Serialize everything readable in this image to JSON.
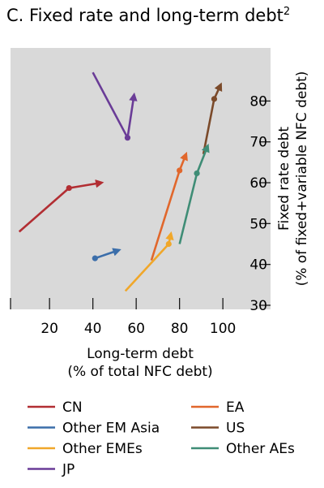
{
  "chart_data": {
    "type": "line",
    "title": "C. Fixed rate and long-term debt",
    "title_superscript": "2",
    "xlabel": "Long-term debt",
    "xlabel_unit": "(% of total NFC debt)",
    "ylabel": "Fixed rate debt",
    "ylabel_unit": "(% of fixed+variable NFC debt)",
    "xlim": [
      2,
      122
    ],
    "ylim": [
      29,
      93
    ],
    "x_ticks": [
      20,
      40,
      60,
      80,
      100
    ],
    "y_ticks": [
      30,
      40,
      50,
      60,
      70,
      80
    ],
    "plot_background": "#d9d9d9",
    "grid": false,
    "legend_position": "bottom",
    "series": [
      {
        "name": "CN",
        "color": "#b22e33",
        "points": [
          [
            6,
            48
          ],
          [
            29,
            58.7
          ],
          [
            44,
            60
          ]
        ],
        "dot": [
          29,
          58.7
        ]
      },
      {
        "name": "EA",
        "color": "#e1672c",
        "points": [
          [
            67,
            41
          ],
          [
            80,
            63
          ],
          [
            83,
            67
          ]
        ],
        "dot": [
          80,
          63
        ]
      },
      {
        "name": "Other EM Asia",
        "color": "#3b6eaa",
        "points": [
          [
            41,
            41.5
          ],
          [
            52,
            43.5
          ]
        ],
        "dot": [
          41,
          41.5
        ]
      },
      {
        "name": "US",
        "color": "#7b4a2a",
        "points": [
          [
            91,
            67
          ],
          [
            96,
            80.5
          ],
          [
            99,
            84
          ]
        ],
        "dot": [
          96,
          80.5
        ]
      },
      {
        "name": "Other EMEs",
        "color": "#f0a72a",
        "points": [
          [
            55,
            33.5
          ],
          [
            75,
            45
          ],
          [
            76,
            47.5
          ]
        ],
        "dot": [
          75,
          45
        ]
      },
      {
        "name": "Other AEs",
        "color": "#3f8d76",
        "points": [
          [
            80,
            45
          ],
          [
            88,
            62.3
          ],
          [
            93,
            69
          ]
        ],
        "dot": [
          88,
          62.3
        ]
      },
      {
        "name": "JP",
        "color": "#6a3c97",
        "points": [
          [
            40,
            87
          ],
          [
            56,
            71
          ],
          [
            59,
            81.5
          ]
        ],
        "dot": [
          56,
          71
        ]
      }
    ]
  }
}
